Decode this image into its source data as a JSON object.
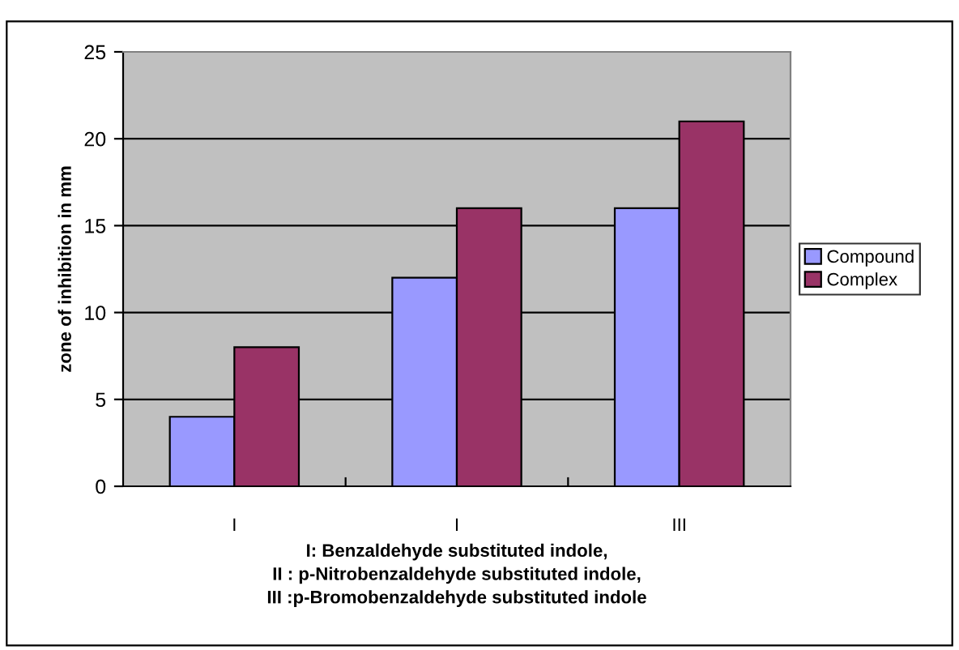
{
  "chart_data": {
    "type": "bar",
    "xlabel": "I: Benzaldehyde substituted indole,\nII : p-Nitrobenzaldehyde substituted indole,\nIII :p-Bromobenzaldehyde substituted indole",
    "ylabel": "zone of inhibition in mm",
    "categories": [
      "I",
      "I",
      "III"
    ],
    "series": [
      {
        "name": "Compound",
        "color": "#9999ff",
        "values": [
          4,
          12,
          16
        ]
      },
      {
        "name": "Complex",
        "color": "#993366",
        "values": [
          8,
          16,
          21
        ]
      }
    ],
    "ylim": [
      0,
      25
    ],
    "yticks": [
      0,
      5,
      10,
      15,
      20,
      25
    ],
    "grid": "y",
    "legend": "right"
  }
}
